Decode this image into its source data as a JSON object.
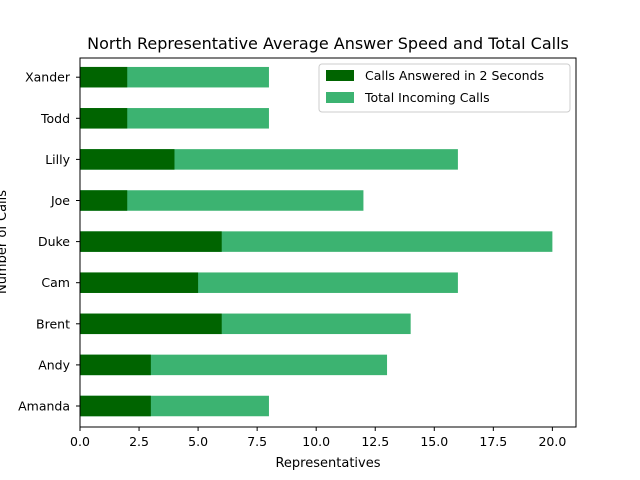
{
  "chart_data": {
    "type": "bar",
    "orientation": "horizontal",
    "stacked": "overlay",
    "title": "North Representative Average Answer Speed and Total Calls",
    "xlabel": "Representatives",
    "ylabel": "Number of Calls",
    "xlim": [
      0,
      21
    ],
    "xticks": [
      0,
      2.5,
      5,
      7.5,
      10,
      12.5,
      15,
      17.5,
      20
    ],
    "xtick_labels": [
      "0.0",
      "2.5",
      "5.0",
      "7.5",
      "10.0",
      "12.5",
      "15.0",
      "17.5",
      "20.0"
    ],
    "categories": [
      "Amanda",
      "Andy",
      "Brent",
      "Cam",
      "Duke",
      "Joe",
      "Lilly",
      "Todd",
      "Xander"
    ],
    "series": [
      {
        "name": "Total Incoming Calls",
        "color": "#3cb371",
        "values": [
          8,
          13,
          14,
          16,
          20,
          12,
          16,
          8,
          8
        ]
      },
      {
        "name": "Calls Answered in 2 Seconds",
        "color": "#006400",
        "values": [
          3,
          3,
          6,
          5,
          6,
          2,
          4,
          2,
          2
        ]
      }
    ],
    "legend": {
      "placement": "top-right",
      "entries": [
        "Calls Answered in 2 Seconds",
        "Total Incoming Calls"
      ]
    },
    "grid": false
  }
}
